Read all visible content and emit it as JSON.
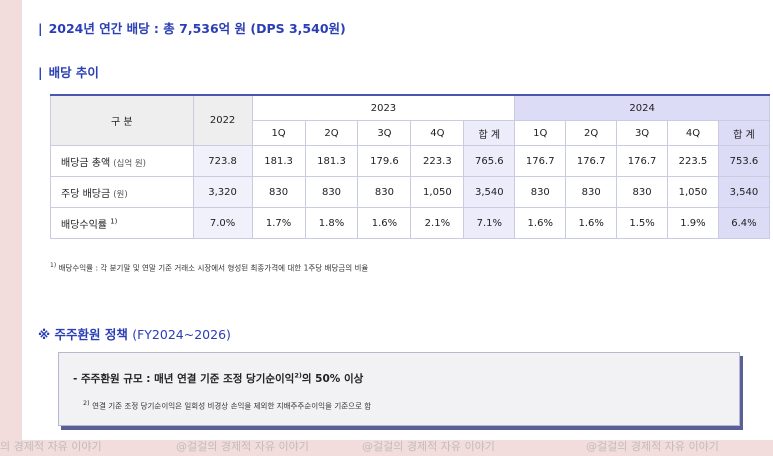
{
  "heading1": {
    "bar": "|",
    "text": "2024년 연간 배당 : 총 7,536억 원 (DPS 3,540원)"
  },
  "heading2": {
    "bar": "|",
    "text": "배당 추이"
  },
  "table": {
    "corner": "구 분",
    "y2022": "2022",
    "y2023": "2023",
    "y2024": "2024",
    "quarters": [
      "1Q",
      "2Q",
      "3Q",
      "4Q",
      "합 계"
    ],
    "rows": [
      {
        "label": "배당금 총액",
        "unit": "(십억 원)",
        "sup": "",
        "v2022": "723.8",
        "q2023": [
          "181.3",
          "181.3",
          "179.6",
          "223.3",
          "765.6"
        ],
        "q2024": [
          "176.7",
          "176.7",
          "176.7",
          "223.5",
          "753.6"
        ]
      },
      {
        "label": "주당 배당금",
        "unit": "(원)",
        "sup": "",
        "v2022": "3,320",
        "q2023": [
          "830",
          "830",
          "830",
          "1,050",
          "3,540"
        ],
        "q2024": [
          "830",
          "830",
          "830",
          "1,050",
          "3,540"
        ]
      },
      {
        "label": "배당수익률",
        "unit": "",
        "sup": "1)",
        "v2022": "7.0%",
        "q2023": [
          "1.7%",
          "1.8%",
          "1.6%",
          "2.1%",
          "7.1%"
        ],
        "q2024": [
          "1.6%",
          "1.6%",
          "1.5%",
          "1.9%",
          "6.4%"
        ]
      }
    ]
  },
  "footnote1": {
    "sup": "1)",
    "text": "배당수익률 : 각 분기말 및 연말 기준 거래소 시장에서 형성된 최종가격에 대한 1주당 배당금의 비율"
  },
  "policy": {
    "title": "※ 주주환원 정책",
    "range": "(FY2024~2026)",
    "line_pre": "- 주주환원 규모 :  매년 연결 기준 조정 당기순이익",
    "line_sup": "2)",
    "line_post": "의 50% 이상",
    "note_sup": "2)",
    "note_text": "연결 기준 조정 당기순이익은 일회성 비경상 손익을 제외한 지배주주순이익을 기준으로 함"
  },
  "watermark": {
    "items": [
      "의 경제적 자유 이야기",
      "@걸걸의 경제적 자유 이야기",
      "@걸걸의 경제적 자유 이야기",
      "@걸걸의 경제적 자유 이야기"
    ]
  }
}
